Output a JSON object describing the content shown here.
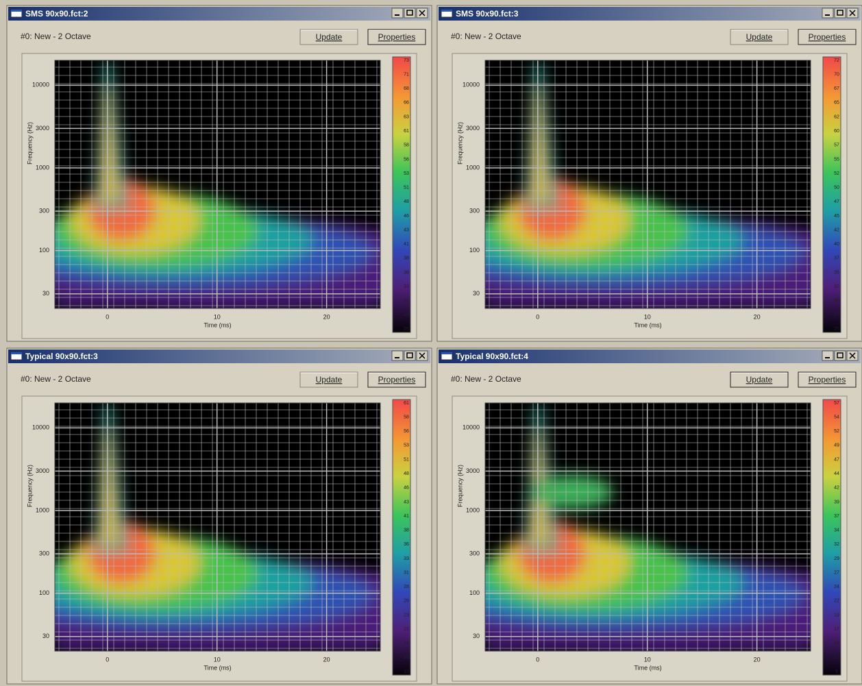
{
  "windows": [
    {
      "title": "SMS 90x90.fct:2",
      "status": "#0: New - 2 Octave",
      "buttons": {
        "update": "Update",
        "properties": "Properties"
      },
      "update_enabled": false,
      "plot": {
        "xlabel": "Time (ms)",
        "ylabel": "Frequency (Hz)",
        "xlim": [
          -4.8,
          24.9
        ],
        "xticks": [
          0,
          10,
          20
        ],
        "ylim": [
          20,
          20000
        ],
        "yscale": "log",
        "yticks": [
          30,
          100,
          300,
          1000,
          3000,
          10000
        ],
        "colorbar": [
          73,
          71,
          68,
          66,
          63,
          61,
          58,
          56,
          53,
          51,
          48,
          46,
          43,
          41,
          38,
          36,
          33,
          31,
          28,
          26
        ]
      }
    },
    {
      "title": "SMS 90x90.fct:3",
      "status": "#0: New - 2 Octave",
      "buttons": {
        "update": "Update",
        "properties": "Properties"
      },
      "update_enabled": false,
      "plot": {
        "xlabel": "Time (ms)",
        "ylabel": "Frequency (Hz)",
        "xlim": [
          -4.8,
          24.9
        ],
        "xticks": [
          0,
          10,
          20
        ],
        "ylim": [
          20,
          20000
        ],
        "yscale": "log",
        "yticks": [
          30,
          100,
          300,
          1000,
          3000,
          10000
        ],
        "colorbar": [
          72,
          70,
          67,
          65,
          62,
          60,
          57,
          55,
          52,
          50,
          47,
          45,
          42,
          40,
          37,
          35,
          32,
          30,
          27,
          25
        ]
      }
    },
    {
      "title": "Typical 90x90.fct:3",
      "status": "#0: New - 2 Octave",
      "buttons": {
        "update": "Update",
        "properties": "Properties"
      },
      "update_enabled": false,
      "plot": {
        "xlabel": "Time (ms)",
        "ylabel": "Frequency (Hz)",
        "xlim": [
          -4.8,
          24.9
        ],
        "xticks": [
          0,
          10,
          20
        ],
        "ylim": [
          20,
          20000
        ],
        "yscale": "log",
        "yticks": [
          30,
          100,
          300,
          1000,
          3000,
          10000
        ],
        "colorbar": [
          61,
          58,
          56,
          53,
          51,
          48,
          46,
          43,
          41,
          38,
          36,
          33,
          31,
          28,
          26,
          23,
          21,
          18,
          16,
          13
        ]
      }
    },
    {
      "title": "Typical 90x90.fct:4",
      "status": "#0: New - 2 Octave",
      "buttons": {
        "update": "Update",
        "properties": "Properties"
      },
      "update_enabled": true,
      "plot": {
        "xlabel": "Time (ms)",
        "ylabel": "Frequency (Hz)",
        "xlim": [
          -4.8,
          24.9
        ],
        "xticks": [
          0,
          10,
          20
        ],
        "ylim": [
          20,
          20000
        ],
        "yscale": "log",
        "yticks": [
          30,
          100,
          300,
          1000,
          3000,
          10000
        ],
        "colorbar": [
          57,
          54,
          52,
          49,
          47,
          44,
          42,
          39,
          37,
          34,
          32,
          29,
          27,
          24,
          22,
          19,
          17,
          14,
          12,
          9
        ]
      }
    }
  ]
}
